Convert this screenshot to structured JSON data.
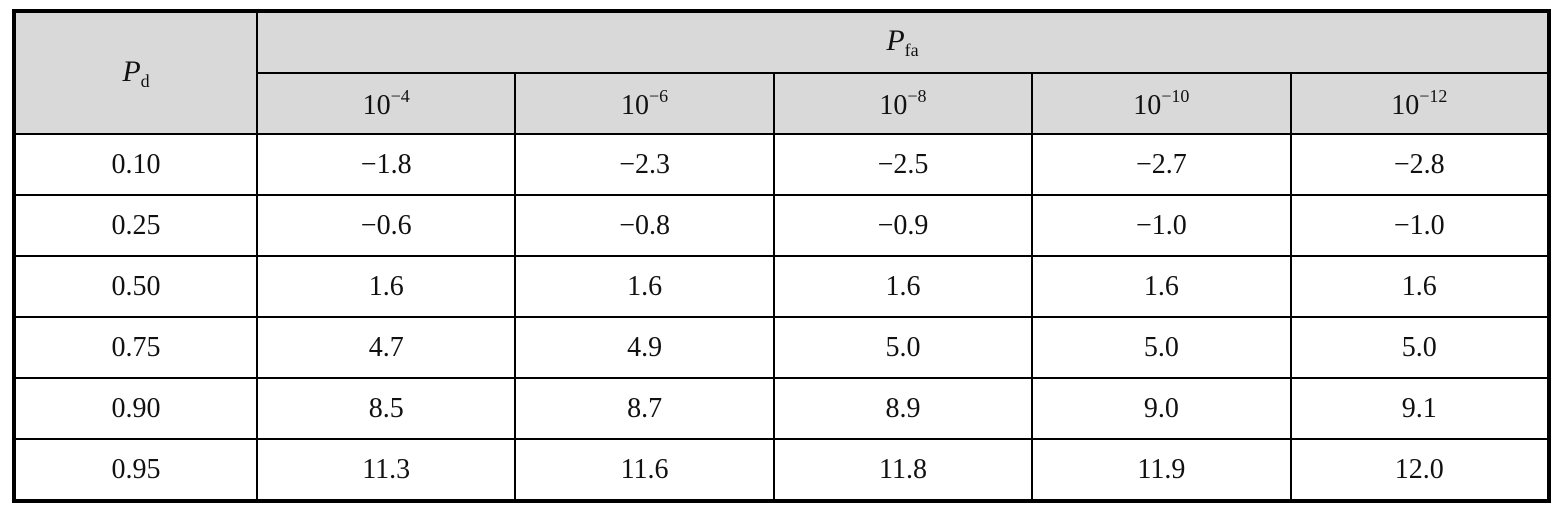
{
  "header": {
    "pd": {
      "base": "P",
      "sub": "d"
    },
    "pfa": {
      "base": "P",
      "sub": "fa"
    },
    "columns": [
      {
        "base": "10",
        "exp": "−4"
      },
      {
        "base": "10",
        "exp": "−6"
      },
      {
        "base": "10",
        "exp": "−8"
      },
      {
        "base": "10",
        "exp": "−10"
      },
      {
        "base": "10",
        "exp": "−12"
      }
    ]
  },
  "table": {
    "rows": [
      [
        "0.10",
        "−1.8",
        "−2.3",
        "−2.5",
        "−2.7",
        "−2.8"
      ],
      [
        "0.25",
        "−0.6",
        "−0.8",
        "−0.9",
        "−1.0",
        "−1.0"
      ],
      [
        "0.50",
        "1.6",
        "1.6",
        "1.6",
        "1.6",
        "1.6"
      ],
      [
        "0.75",
        "4.7",
        "4.9",
        "5.0",
        "5.0",
        "5.0"
      ],
      [
        "0.90",
        "8.5",
        "8.7",
        "8.9",
        "9.0",
        "9.1"
      ],
      [
        "0.95",
        "11.3",
        "11.6",
        "11.8",
        "11.9",
        "12.0"
      ]
    ]
  }
}
